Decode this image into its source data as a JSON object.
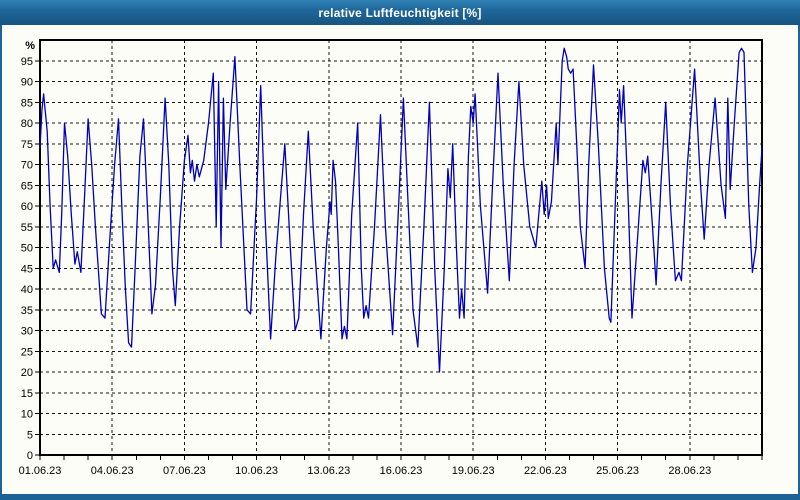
{
  "window": {
    "title": "relative Luftfeuchtigkeit [%]"
  },
  "colors": {
    "frame": "#1d6296",
    "content_background": "#fdfdf7",
    "title_text": "#ffffff",
    "grid": "#151515",
    "axis": "#000000",
    "text": "#000000",
    "series": "#0000bb"
  },
  "chart_data": {
    "type": "line",
    "title": "relative Luftfeuchtigkeit [%]",
    "xlabel": "",
    "ylabel": "%",
    "legend": "none",
    "grid": "dashed",
    "ylim": [
      0,
      100
    ],
    "y_tick_step": 5,
    "y_ticks": [
      0,
      5,
      10,
      15,
      20,
      25,
      30,
      35,
      40,
      45,
      50,
      55,
      60,
      65,
      70,
      75,
      80,
      85,
      90,
      95
    ],
    "x_axis": {
      "unit": "days since 01.06.23 00:00",
      "total_days": 30,
      "minor_tick_every_days": 1,
      "labels": [
        "01.06.23",
        "04.06.23",
        "07.06.23",
        "10.06.23",
        "13.06.23",
        "16.06.23",
        "19.06.23",
        "22.06.23",
        "25.06.23",
        "28.06.23"
      ],
      "label_days": [
        0,
        3,
        6,
        9,
        12,
        15,
        18,
        21,
        24,
        27
      ],
      "grid_days": [
        3,
        6,
        9,
        12,
        15,
        18,
        21,
        24,
        27
      ]
    },
    "series": [
      {
        "name": "relative Luftfeuchtigkeit",
        "unit": "%",
        "color": "#0000bb",
        "points": [
          [
            0,
            74
          ],
          [
            0.08,
            83
          ],
          [
            0.15,
            87
          ],
          [
            0.3,
            78
          ],
          [
            0.42,
            60
          ],
          [
            0.55,
            45
          ],
          [
            0.65,
            47
          ],
          [
            0.8,
            44
          ],
          [
            0.9,
            58
          ],
          [
            1.02,
            80
          ],
          [
            1.15,
            72
          ],
          [
            1.3,
            58
          ],
          [
            1.45,
            46
          ],
          [
            1.55,
            49
          ],
          [
            1.7,
            44
          ],
          [
            1.85,
            62
          ],
          [
            2.0,
            81
          ],
          [
            2.15,
            70
          ],
          [
            2.3,
            55
          ],
          [
            2.55,
            34
          ],
          [
            2.7,
            33
          ],
          [
            2.9,
            52
          ],
          [
            3.1,
            70
          ],
          [
            3.26,
            81
          ],
          [
            3.4,
            60
          ],
          [
            3.55,
            40
          ],
          [
            3.68,
            27
          ],
          [
            3.8,
            26
          ],
          [
            3.95,
            45
          ],
          [
            4.15,
            72
          ],
          [
            4.3,
            81
          ],
          [
            4.5,
            55
          ],
          [
            4.65,
            34
          ],
          [
            4.8,
            41
          ],
          [
            5.0,
            62
          ],
          [
            5.2,
            86
          ],
          [
            5.35,
            70
          ],
          [
            5.5,
            45
          ],
          [
            5.62,
            36
          ],
          [
            5.8,
            55
          ],
          [
            6.0,
            71
          ],
          [
            6.15,
            77
          ],
          [
            6.25,
            68
          ],
          [
            6.33,
            71
          ],
          [
            6.42,
            66
          ],
          [
            6.52,
            70
          ],
          [
            6.62,
            67
          ],
          [
            6.8,
            71
          ],
          [
            7.0,
            80
          ],
          [
            7.2,
            92
          ],
          [
            7.32,
            55
          ],
          [
            7.42,
            90
          ],
          [
            7.52,
            50
          ],
          [
            7.62,
            86
          ],
          [
            7.72,
            64
          ],
          [
            7.9,
            80
          ],
          [
            8.1,
            96
          ],
          [
            8.3,
            70
          ],
          [
            8.6,
            35
          ],
          [
            8.75,
            34
          ],
          [
            9.0,
            62
          ],
          [
            9.17,
            89
          ],
          [
            9.35,
            58
          ],
          [
            9.58,
            28
          ],
          [
            9.8,
            48
          ],
          [
            10.17,
            75
          ],
          [
            10.4,
            50
          ],
          [
            10.6,
            30
          ],
          [
            10.75,
            33
          ],
          [
            10.95,
            58
          ],
          [
            11.15,
            78
          ],
          [
            11.35,
            55
          ],
          [
            11.67,
            28
          ],
          [
            11.9,
            50
          ],
          [
            12.05,
            61
          ],
          [
            12.1,
            58
          ],
          [
            12.18,
            71
          ],
          [
            12.28,
            66
          ],
          [
            12.4,
            50
          ],
          [
            12.55,
            28
          ],
          [
            12.65,
            31
          ],
          [
            12.75,
            28
          ],
          [
            12.95,
            58
          ],
          [
            13.2,
            80
          ],
          [
            13.35,
            45
          ],
          [
            13.45,
            33
          ],
          [
            13.55,
            36
          ],
          [
            13.65,
            33
          ],
          [
            13.9,
            55
          ],
          [
            14.15,
            82
          ],
          [
            14.35,
            55
          ],
          [
            14.65,
            29
          ],
          [
            14.9,
            60
          ],
          [
            15.1,
            86
          ],
          [
            15.3,
            60
          ],
          [
            15.5,
            35
          ],
          [
            15.7,
            26
          ],
          [
            15.95,
            55
          ],
          [
            16.18,
            85
          ],
          [
            16.4,
            45
          ],
          [
            16.6,
            20
          ],
          [
            16.8,
            45
          ],
          [
            16.95,
            69
          ],
          [
            17.05,
            62
          ],
          [
            17.15,
            75
          ],
          [
            17.3,
            50
          ],
          [
            17.43,
            33
          ],
          [
            17.52,
            40
          ],
          [
            17.62,
            33
          ],
          [
            17.8,
            72
          ],
          [
            17.9,
            84
          ],
          [
            18.0,
            80
          ],
          [
            18.08,
            87
          ],
          [
            18.3,
            60
          ],
          [
            18.6,
            39
          ],
          [
            18.8,
            65
          ],
          [
            19.03,
            92
          ],
          [
            19.25,
            65
          ],
          [
            19.5,
            42
          ],
          [
            19.7,
            70
          ],
          [
            19.9,
            90
          ],
          [
            20.1,
            70
          ],
          [
            20.35,
            55
          ],
          [
            20.6,
            50
          ],
          [
            20.85,
            66
          ],
          [
            20.95,
            58
          ],
          [
            21.05,
            65
          ],
          [
            21.12,
            57
          ],
          [
            21.25,
            61
          ],
          [
            21.45,
            80
          ],
          [
            21.52,
            70
          ],
          [
            21.7,
            95
          ],
          [
            21.78,
            98
          ],
          [
            21.88,
            96
          ],
          [
            21.95,
            93
          ],
          [
            22.05,
            92
          ],
          [
            22.15,
            93
          ],
          [
            22.3,
            75
          ],
          [
            22.45,
            55
          ],
          [
            22.65,
            45
          ],
          [
            22.8,
            70
          ],
          [
            23.0,
            94
          ],
          [
            23.2,
            75
          ],
          [
            23.45,
            45
          ],
          [
            23.65,
            33
          ],
          [
            23.72,
            32
          ],
          [
            23.9,
            60
          ],
          [
            24.08,
            88
          ],
          [
            24.15,
            80
          ],
          [
            24.25,
            89
          ],
          [
            24.45,
            60
          ],
          [
            24.6,
            33
          ],
          [
            24.8,
            50
          ],
          [
            25.05,
            71
          ],
          [
            25.15,
            68
          ],
          [
            25.25,
            72
          ],
          [
            25.45,
            55
          ],
          [
            25.6,
            41
          ],
          [
            25.8,
            65
          ],
          [
            26.0,
            85
          ],
          [
            26.2,
            60
          ],
          [
            26.4,
            42
          ],
          [
            26.55,
            44
          ],
          [
            26.65,
            42
          ],
          [
            26.9,
            70
          ],
          [
            27.2,
            93
          ],
          [
            27.45,
            65
          ],
          [
            27.6,
            52
          ],
          [
            27.8,
            70
          ],
          [
            28.05,
            86
          ],
          [
            28.3,
            65
          ],
          [
            28.48,
            57
          ],
          [
            28.58,
            86
          ],
          [
            28.68,
            64
          ],
          [
            28.85,
            80
          ],
          [
            29.05,
            97
          ],
          [
            29.15,
            98
          ],
          [
            29.25,
            97
          ],
          [
            29.45,
            60
          ],
          [
            29.6,
            44
          ],
          [
            29.75,
            50
          ],
          [
            29.9,
            65
          ],
          [
            30.0,
            74
          ]
        ]
      }
    ]
  }
}
